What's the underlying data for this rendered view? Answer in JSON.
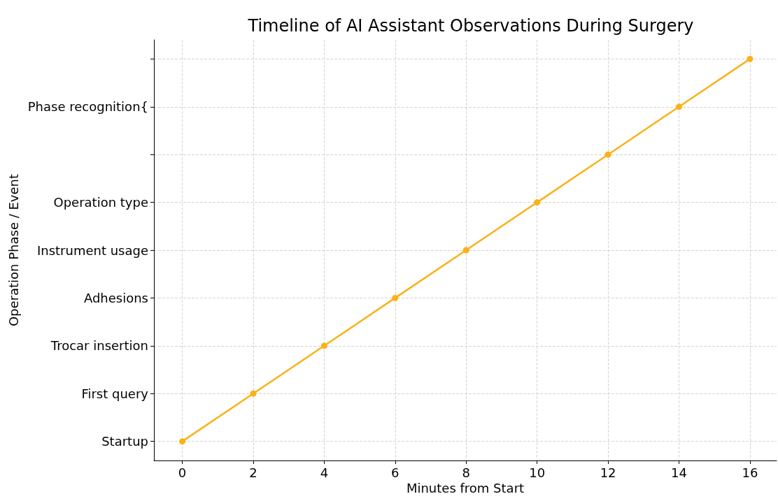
{
  "chart_data": {
    "type": "line",
    "orientation": "horizontal",
    "title": "Timeline of AI Assistant Observations During Surgery",
    "xlabel": "Minutes from Start",
    "ylabel": "Operation Phase / Event",
    "categories": [
      null,
      "Phase recognition{",
      null,
      "Operation type",
      "Instrument usage",
      "Adhesions",
      "Trocar insertion",
      "First query",
      "Startup"
    ],
    "series": [
      {
        "color": "#fbb117",
        "values": [
          16,
          14,
          12,
          10,
          8,
          6,
          4,
          2,
          0
        ]
      }
    ],
    "xlim": [
      -0.8,
      16.75
    ],
    "xticks": [
      0,
      2,
      4,
      6,
      8,
      10,
      12,
      14,
      16
    ],
    "grid": true,
    "marker": "circle",
    "line_style": "solid"
  }
}
